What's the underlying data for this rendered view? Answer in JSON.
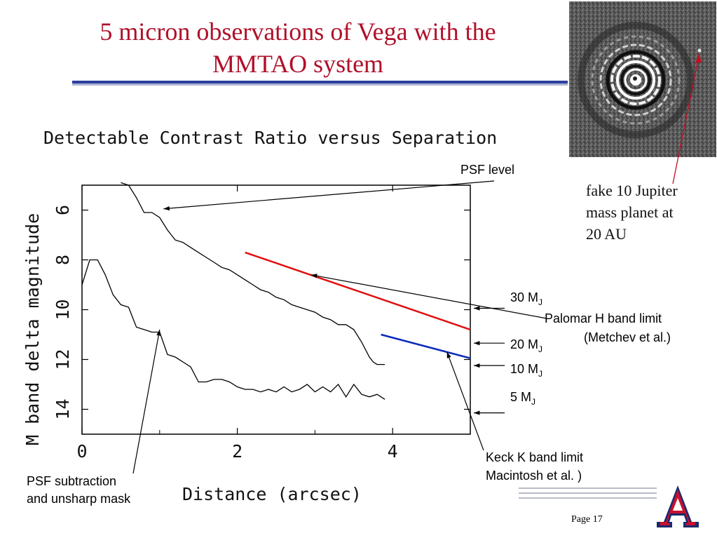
{
  "slide": {
    "title_line1": "5 micron observations of Vega with the",
    "title_line2": "MMTAO system",
    "page": "Page 17"
  },
  "annotations": {
    "psf_level": "PSF level",
    "psf_subtraction_1": "PSF subtraction",
    "psf_subtraction_2": "and unsharp mask",
    "palomar_1": "Palomar H band limit",
    "palomar_2": "(Metchev et al.)",
    "keck_1": "Keck K band limit",
    "keck_2": "Macintosh et al. )",
    "planet_1": "fake 10 Jupiter",
    "planet_2": "mass planet at",
    "planet_3": "20 AU",
    "m30": "30 M",
    "m20": "20 M",
    "m10": "10 M",
    "m5": "5 M",
    "msub": "J"
  },
  "chart_data": {
    "type": "line",
    "title": "Detectable Contrast Ratio versus Separation",
    "xlabel": "Distance (arcsec)",
    "ylabel": "M band delta magnitude",
    "xlim": [
      0,
      5
    ],
    "ylim": [
      5,
      15
    ],
    "y_inverted": true,
    "xticks": [
      0,
      2,
      4
    ],
    "yticks": [
      6,
      8,
      10,
      12,
      14
    ],
    "series": [
      {
        "color": "#000000",
        "x": [
          0.5,
          0.6,
          0.7,
          0.8,
          0.9,
          1.0,
          1.1,
          1.2,
          1.3,
          1.4,
          1.5,
          1.6,
          1.7,
          1.8,
          1.9,
          2.0,
          2.1,
          2.2,
          2.3,
          2.4,
          2.5,
          2.6,
          2.7,
          2.8,
          2.9,
          3.0,
          3.1,
          3.2,
          3.3,
          3.4,
          3.5,
          3.6,
          3.7,
          3.75,
          3.8,
          3.85,
          3.9
        ],
        "y": [
          4.9,
          5.0,
          5.5,
          6.1,
          6.1,
          6.3,
          6.8,
          7.2,
          7.3,
          7.5,
          7.7,
          7.9,
          8.1,
          8.3,
          8.4,
          8.6,
          8.8,
          9.0,
          9.2,
          9.3,
          9.5,
          9.6,
          9.8,
          9.9,
          10.0,
          10.1,
          10.3,
          10.4,
          10.6,
          10.6,
          10.8,
          11.3,
          11.9,
          12.1,
          12.2,
          12.2,
          12.2
        ]
      },
      {
        "color": "#000000",
        "x": [
          0.0,
          0.1,
          0.2,
          0.3,
          0.4,
          0.5,
          0.6,
          0.7,
          0.8,
          0.9,
          1.0,
          1.1,
          1.2,
          1.3,
          1.4,
          1.5,
          1.6,
          1.7,
          1.8,
          1.9,
          2.0,
          2.1,
          2.2,
          2.3,
          2.4,
          2.5,
          2.6,
          2.7,
          2.8,
          2.9,
          3.0,
          3.1,
          3.2,
          3.3,
          3.4,
          3.5,
          3.6,
          3.7,
          3.8,
          3.9
        ],
        "y": [
          9.0,
          8.0,
          8.0,
          8.6,
          9.4,
          9.8,
          9.9,
          10.7,
          10.8,
          10.9,
          10.9,
          11.8,
          11.9,
          12.1,
          12.3,
          12.9,
          12.9,
          12.8,
          12.8,
          12.9,
          13.1,
          13.2,
          13.2,
          13.3,
          13.2,
          13.3,
          13.1,
          13.3,
          13.2,
          13.0,
          13.3,
          13.1,
          13.3,
          13.0,
          13.5,
          13.0,
          13.4,
          13.5,
          13.4,
          13.6
        ]
      },
      {
        "color": "#e01010",
        "x": [
          2.1,
          5.0
        ],
        "y": [
          7.7,
          10.8
        ]
      },
      {
        "color": "#0a2ab8",
        "x": [
          3.85,
          5.0
        ],
        "y": [
          11.0,
          11.95
        ]
      }
    ],
    "mass_marks": [
      {
        "label": "30 M",
        "sub": "J",
        "y": 10.0
      },
      {
        "label": "20 M",
        "sub": "J",
        "y": 11.4
      },
      {
        "label": "10 M",
        "sub": "J",
        "y": 12.3
      },
      {
        "label": "5 M",
        "sub": "J",
        "y": 14.2
      }
    ]
  }
}
